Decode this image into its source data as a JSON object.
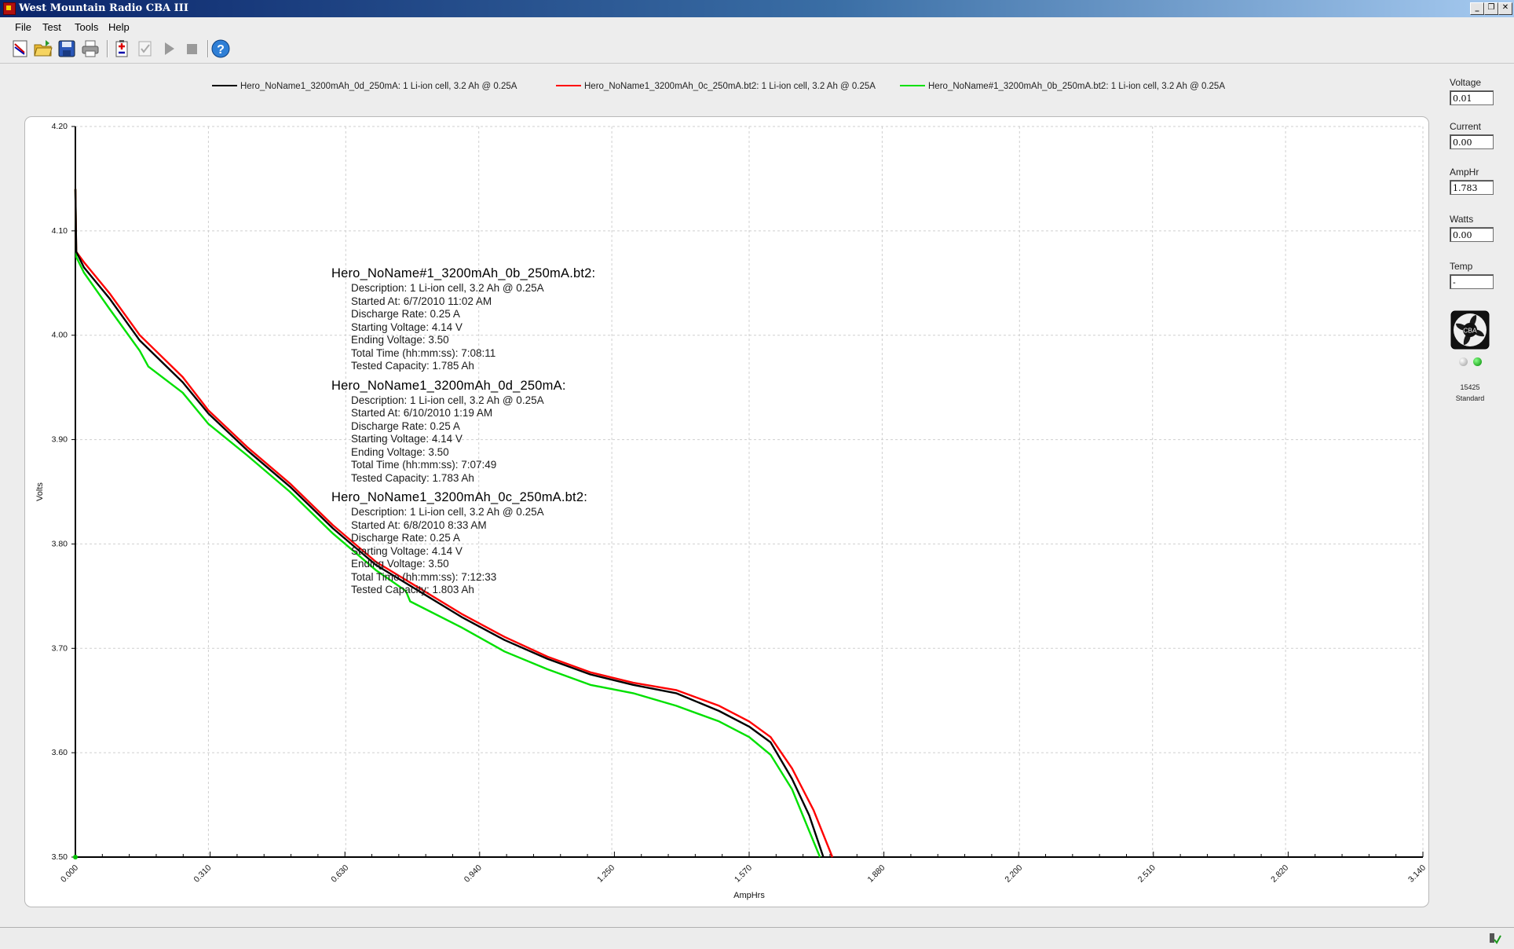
{
  "window": {
    "title": "West Mountain Radio CBA III",
    "min_glyph": "_",
    "max_glyph": "❐",
    "close_glyph": "✕"
  },
  "menu": [
    {
      "name": "menu-file",
      "label": "File"
    },
    {
      "name": "menu-test",
      "label": "Test"
    },
    {
      "name": "menu-tools",
      "label": "Tools"
    },
    {
      "name": "menu-help",
      "label": "Help"
    }
  ],
  "toolbar": [
    "new-graph-icon",
    "open-folder-icon",
    "save-disk-icon",
    "printer-icon",
    "battery-test-icon",
    "checklist-icon",
    "play-icon",
    "stop-icon",
    "help-icon"
  ],
  "legend": [
    {
      "label": "Hero_NoName1_3200mAh_0d_250mA: 1 Li-ion cell, 3.2 Ah @ 0.25A",
      "color": "#000000"
    },
    {
      "label": "Hero_NoName1_3200mAh_0c_250mA.bt2: 1 Li-ion cell, 3.2 Ah @ 0.25A",
      "color": "#ff0000"
    },
    {
      "label": "Hero_NoName#1_3200mAh_0b_250mA.bt2: 1 Li-ion cell, 3.2 Ah @ 0.25A",
      "color": "#00e000"
    }
  ],
  "info_blocks": [
    {
      "heading": "Hero_NoName#1_3200mAh_0b_250mA.bt2:",
      "lines": [
        "Description: 1 Li-ion cell, 3.2 Ah @ 0.25A",
        "Started At: 6/7/2010 11:02 AM",
        "Discharge Rate: 0.25 A",
        "Starting Voltage: 4.14 V",
        "Ending Voltage: 3.50",
        "Total Time (hh:mm:ss): 7:08:11",
        "Tested Capacity: 1.785 Ah"
      ]
    },
    {
      "heading": "Hero_NoName1_3200mAh_0d_250mA:",
      "lines": [
        "Description: 1 Li-ion cell, 3.2 Ah @ 0.25A",
        "Started At: 6/10/2010 1:19 AM",
        "Discharge Rate: 0.25 A",
        "Starting Voltage: 4.14 V",
        "Ending Voltage: 3.50",
        "Total Time (hh:mm:ss): 7:07:49",
        "Tested Capacity: 1.783 Ah"
      ]
    },
    {
      "heading": "Hero_NoName1_3200mAh_0c_250mA.bt2:",
      "lines": [
        "Description: 1 Li-ion cell, 3.2 Ah @ 0.25A",
        "Started At: 6/8/2010 8:33 AM",
        "Discharge Rate: 0.25 A",
        "Starting Voltage: 4.14 V",
        "Ending Voltage: 3.50",
        "Total Time (hh:mm:ss): 7:12:33",
        "Tested Capacity: 1.803 Ah"
      ]
    }
  ],
  "meters": [
    {
      "name": "voltage",
      "label": "Voltage",
      "value": "0.01"
    },
    {
      "name": "current",
      "label": "Current",
      "value": "0.00"
    },
    {
      "name": "amphr",
      "label": "AmpHr",
      "value": "1.783"
    },
    {
      "name": "watts",
      "label": "Watts",
      "value": "0.00"
    },
    {
      "name": "temp",
      "label": "Temp",
      "value": "-"
    }
  ],
  "device": {
    "badge": "CBA",
    "serial": "15425",
    "mode": "Standard",
    "led_colors": [
      "#d8d8d8",
      "#22b022"
    ]
  },
  "chart_data": {
    "type": "line",
    "xlabel": "AmpHrs",
    "ylabel": "Volts",
    "xlim": [
      0,
      3.14
    ],
    "ylim": [
      3.5,
      4.2
    ],
    "x_ticks": [
      "0.000",
      "0.310",
      "0.630",
      "0.940",
      "1.250",
      "1.570",
      "1.880",
      "2.200",
      "2.510",
      "2.820",
      "3.140"
    ],
    "y_ticks": [
      "3.50",
      "3.60",
      "3.70",
      "3.80",
      "3.90",
      "4.00",
      "4.10",
      "4.20"
    ],
    "grid": true,
    "series": [
      {
        "name": "Hero_NoName1_3200mAh_0d_250mA",
        "color": "#000000",
        "points": [
          [
            0,
            4.14
          ],
          [
            0.002,
            4.08
          ],
          [
            0.02,
            4.065
          ],
          [
            0.08,
            4.035
          ],
          [
            0.15,
            3.995
          ],
          [
            0.25,
            3.955
          ],
          [
            0.31,
            3.925
          ],
          [
            0.4,
            3.89
          ],
          [
            0.5,
            3.855
          ],
          [
            0.6,
            3.815
          ],
          [
            0.7,
            3.78
          ],
          [
            0.8,
            3.755
          ],
          [
            0.9,
            3.73
          ],
          [
            1.0,
            3.708
          ],
          [
            1.1,
            3.69
          ],
          [
            1.2,
            3.675
          ],
          [
            1.3,
            3.665
          ],
          [
            1.4,
            3.657
          ],
          [
            1.5,
            3.64
          ],
          [
            1.57,
            3.625
          ],
          [
            1.62,
            3.61
          ],
          [
            1.67,
            3.575
          ],
          [
            1.71,
            3.54
          ],
          [
            1.743,
            3.5
          ]
        ]
      },
      {
        "name": "Hero_NoName1_3200mAh_0c_250mA.bt2",
        "color": "#ff0000",
        "points": [
          [
            0,
            4.14
          ],
          [
            0.002,
            4.08
          ],
          [
            0.02,
            4.07
          ],
          [
            0.08,
            4.04
          ],
          [
            0.15,
            4.0
          ],
          [
            0.25,
            3.96
          ],
          [
            0.31,
            3.928
          ],
          [
            0.4,
            3.893
          ],
          [
            0.5,
            3.858
          ],
          [
            0.6,
            3.818
          ],
          [
            0.7,
            3.783
          ],
          [
            0.8,
            3.758
          ],
          [
            0.9,
            3.733
          ],
          [
            1.0,
            3.711
          ],
          [
            1.1,
            3.692
          ],
          [
            1.2,
            3.677
          ],
          [
            1.3,
            3.667
          ],
          [
            1.4,
            3.66
          ],
          [
            1.5,
            3.645
          ],
          [
            1.57,
            3.63
          ],
          [
            1.62,
            3.615
          ],
          [
            1.67,
            3.585
          ],
          [
            1.72,
            3.545
          ],
          [
            1.764,
            3.5
          ]
        ]
      },
      {
        "name": "Hero_NoName#1_3200mAh_0b_250mA.bt2",
        "color": "#00e000",
        "points": [
          [
            0,
            4.14
          ],
          [
            0.002,
            4.075
          ],
          [
            0.02,
            4.06
          ],
          [
            0.08,
            4.025
          ],
          [
            0.15,
            3.985
          ],
          [
            0.17,
            3.97
          ],
          [
            0.25,
            3.945
          ],
          [
            0.31,
            3.915
          ],
          [
            0.4,
            3.885
          ],
          [
            0.5,
            3.85
          ],
          [
            0.6,
            3.81
          ],
          [
            0.7,
            3.775
          ],
          [
            0.77,
            3.755
          ],
          [
            0.78,
            3.745
          ],
          [
            0.9,
            3.72
          ],
          [
            1.0,
            3.697
          ],
          [
            1.1,
            3.68
          ],
          [
            1.2,
            3.665
          ],
          [
            1.3,
            3.657
          ],
          [
            1.4,
            3.645
          ],
          [
            1.5,
            3.63
          ],
          [
            1.57,
            3.615
          ],
          [
            1.62,
            3.598
          ],
          [
            1.67,
            3.565
          ],
          [
            1.71,
            3.525
          ],
          [
            1.735,
            3.5
          ]
        ]
      }
    ]
  }
}
